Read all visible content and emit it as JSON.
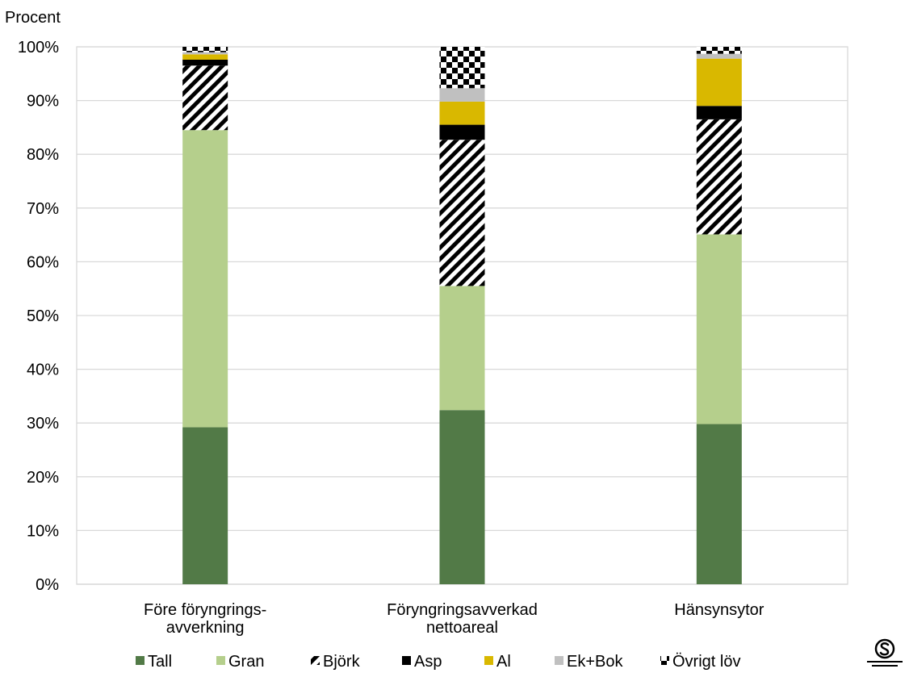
{
  "chart_data": {
    "type": "bar",
    "stacked": true,
    "ylabel": "Procent",
    "ylim": [
      0,
      100
    ],
    "yticks": [
      "0%",
      "10%",
      "20%",
      "30%",
      "40%",
      "50%",
      "60%",
      "70%",
      "80%",
      "90%",
      "100%"
    ],
    "grid": true,
    "legend_position": "bottom",
    "categories": [
      [
        "Före föryngrings-",
        "avverkning"
      ],
      [
        "Föryngringsavverkad",
        "nettoareal"
      ],
      [
        "Hänsynsytor"
      ]
    ],
    "series": [
      {
        "name": "Tall",
        "color": "#527a47",
        "pattern": "solid",
        "values": [
          29.2,
          32.4,
          29.8
        ]
      },
      {
        "name": "Gran",
        "color": "#b5cf8c",
        "pattern": "solid",
        "values": [
          55.3,
          23.1,
          35.3
        ]
      },
      {
        "name": "Björk",
        "color": "#000000",
        "pattern": "diagonal-stripes",
        "values": [
          12.0,
          27.2,
          21.4
        ]
      },
      {
        "name": "Asp",
        "color": "#000000",
        "pattern": "solid",
        "values": [
          1.1,
          2.8,
          2.5
        ]
      },
      {
        "name": "Al",
        "color": "#d9b800",
        "pattern": "solid",
        "values": [
          1.0,
          4.3,
          8.8
        ]
      },
      {
        "name": "Ek+Bok",
        "color": "#c0c0c0",
        "pattern": "solid",
        "values": [
          0.4,
          2.5,
          0.9
        ]
      },
      {
        "name": "Övrigt löv",
        "color": "#000000",
        "pattern": "checker",
        "values": [
          1.0,
          7.7,
          1.3
        ]
      }
    ]
  },
  "logo": {
    "caption": "Sveriges officiella statistik"
  }
}
